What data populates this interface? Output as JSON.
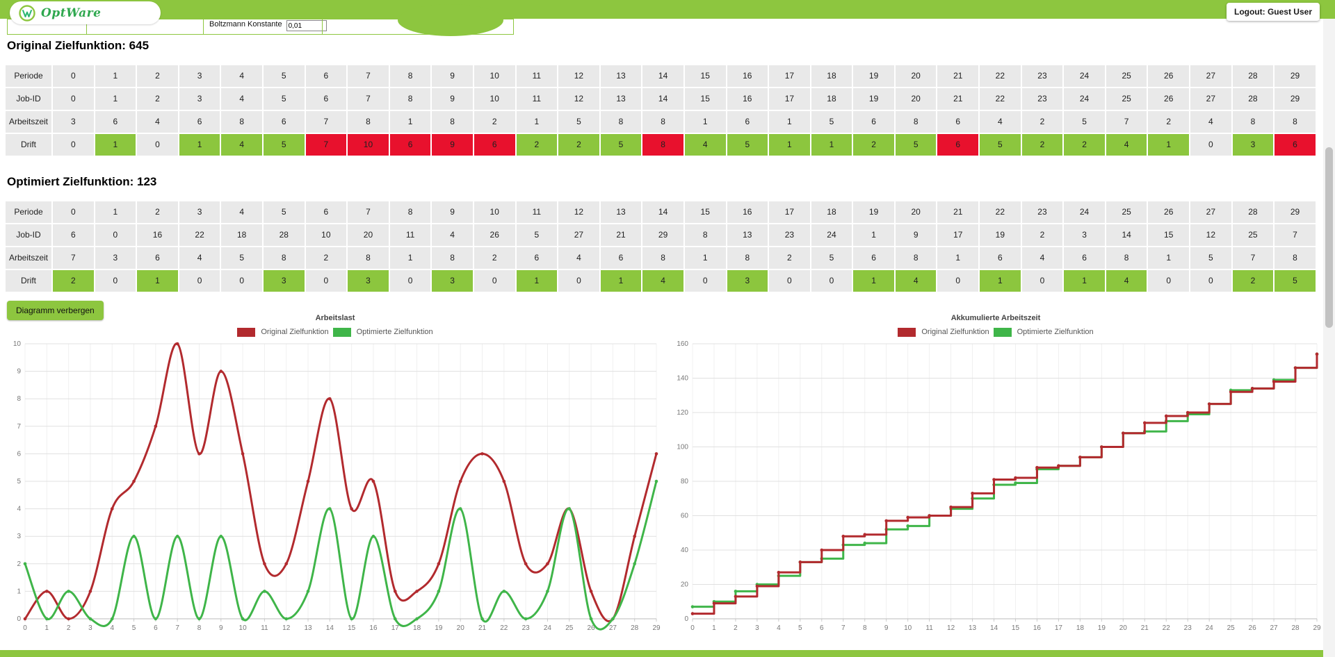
{
  "header": {
    "logo_text": "OptWare",
    "logout_label": "Logout: Guest User"
  },
  "form": {
    "boltzmann_label": "Boltzmann Konstante",
    "boltzmann_value": "0,01"
  },
  "controls": {
    "hide_chart_label": "Diagramm verbergen"
  },
  "tables": [
    {
      "id": "original",
      "title": "Original Zielfunktion: 645",
      "row_labels": [
        "Periode",
        "Job-ID",
        "Arbeitszeit",
        "Drift"
      ],
      "periode": [
        0,
        1,
        2,
        3,
        4,
        5,
        6,
        7,
        8,
        9,
        10,
        11,
        12,
        13,
        14,
        15,
        16,
        17,
        18,
        19,
        20,
        21,
        22,
        23,
        24,
        25,
        26,
        27,
        28,
        29
      ],
      "job_id": [
        0,
        1,
        2,
        3,
        4,
        5,
        6,
        7,
        8,
        9,
        10,
        11,
        12,
        13,
        14,
        15,
        16,
        17,
        18,
        19,
        20,
        21,
        22,
        23,
        24,
        25,
        26,
        27,
        28,
        29
      ],
      "arbeitszeit": [
        3,
        6,
        4,
        6,
        8,
        6,
        7,
        8,
        1,
        8,
        2,
        1,
        5,
        8,
        8,
        1,
        6,
        1,
        5,
        6,
        8,
        6,
        4,
        2,
        5,
        7,
        2,
        4,
        8,
        8
      ],
      "drift": [
        0,
        1,
        0,
        1,
        4,
        5,
        7,
        10,
        6,
        9,
        6,
        2,
        2,
        5,
        8,
        4,
        5,
        1,
        1,
        2,
        5,
        6,
        5,
        2,
        2,
        4,
        1,
        0,
        3,
        6
      ]
    },
    {
      "id": "optimized",
      "title": "Optimiert Zielfunktion: 123",
      "row_labels": [
        "Periode",
        "Job-ID",
        "Arbeitszeit",
        "Drift"
      ],
      "periode": [
        0,
        1,
        2,
        3,
        4,
        5,
        6,
        7,
        8,
        9,
        10,
        11,
        12,
        13,
        14,
        15,
        16,
        17,
        18,
        19,
        20,
        21,
        22,
        23,
        24,
        25,
        26,
        27,
        28,
        29
      ],
      "job_id": [
        6,
        0,
        16,
        22,
        18,
        28,
        10,
        20,
        11,
        4,
        26,
        5,
        27,
        21,
        29,
        8,
        13,
        23,
        24,
        1,
        9,
        17,
        19,
        2,
        3,
        14,
        15,
        12,
        25,
        7
      ],
      "arbeitszeit": [
        7,
        3,
        6,
        4,
        5,
        8,
        2,
        8,
        1,
        8,
        2,
        6,
        4,
        6,
        8,
        1,
        8,
        2,
        5,
        6,
        8,
        1,
        6,
        4,
        6,
        8,
        1,
        5,
        7,
        8
      ],
      "drift": [
        2,
        0,
        1,
        0,
        0,
        3,
        0,
        3,
        0,
        3,
        0,
        1,
        0,
        1,
        4,
        0,
        3,
        0,
        0,
        1,
        4,
        0,
        1,
        0,
        1,
        4,
        0,
        0,
        2,
        5
      ]
    }
  ],
  "chart_data": [
    {
      "type": "line",
      "title": "Arbeitslast",
      "x": [
        0,
        1,
        2,
        3,
        4,
        5,
        6,
        7,
        8,
        9,
        10,
        11,
        12,
        13,
        14,
        15,
        16,
        17,
        18,
        19,
        20,
        21,
        22,
        23,
        24,
        25,
        26,
        27,
        28,
        29
      ],
      "series": [
        {
          "name": "Original Zielfunktion",
          "color": "#B22A2E",
          "values": [
            0,
            1,
            0,
            1,
            4,
            5,
            7,
            10,
            6,
            9,
            6,
            2,
            2,
            5,
            8,
            4,
            5,
            1,
            1,
            2,
            5,
            6,
            5,
            2,
            2,
            4,
            1,
            0,
            3,
            6
          ]
        },
        {
          "name": "Optimierte Zielfunktion",
          "color": "#3FB549",
          "values": [
            2,
            0,
            1,
            0,
            0,
            3,
            0,
            3,
            0,
            3,
            0,
            1,
            0,
            1,
            4,
            0,
            3,
            0,
            0,
            1,
            4,
            0,
            1,
            0,
            1,
            4,
            0,
            0,
            2,
            5
          ]
        }
      ],
      "ylim": [
        0,
        10
      ],
      "ytick_step": 1,
      "grid": true,
      "legend_position": "top",
      "draw_order": [
        0,
        1
      ]
    },
    {
      "type": "step",
      "title": "Akkumulierte Arbeitszeit",
      "x": [
        0,
        1,
        2,
        3,
        4,
        5,
        6,
        7,
        8,
        9,
        10,
        11,
        12,
        13,
        14,
        15,
        16,
        17,
        18,
        19,
        20,
        21,
        22,
        23,
        24,
        25,
        26,
        27,
        28,
        29
      ],
      "series": [
        {
          "name": "Original Zielfunktion",
          "color": "#B22A2E",
          "values": [
            3,
            9,
            13,
            19,
            27,
            33,
            40,
            48,
            49,
            57,
            59,
            60,
            65,
            73,
            81,
            82,
            88,
            89,
            94,
            100,
            108,
            114,
            118,
            120,
            125,
            132,
            134,
            138,
            146,
            154
          ]
        },
        {
          "name": "Optimierte Zielfunktion",
          "color": "#3FB549",
          "values": [
            7,
            10,
            16,
            20,
            25,
            33,
            35,
            43,
            44,
            52,
            54,
            60,
            64,
            70,
            78,
            79,
            87,
            89,
            94,
            100,
            108,
            109,
            115,
            119,
            125,
            133,
            134,
            139,
            146,
            154
          ]
        }
      ],
      "ylim": [
        0,
        160
      ],
      "ytick_step": 20,
      "grid": true,
      "legend_position": "top",
      "draw_order": [
        1,
        0
      ]
    }
  ],
  "colors": {
    "brand_green": "#8DC63F",
    "drift_green": "#8CC63E",
    "drift_red": "#E8112D",
    "cell_gray": "#E9E9E9",
    "chart_red": "#B22A2E",
    "chart_green": "#3FB549"
  }
}
